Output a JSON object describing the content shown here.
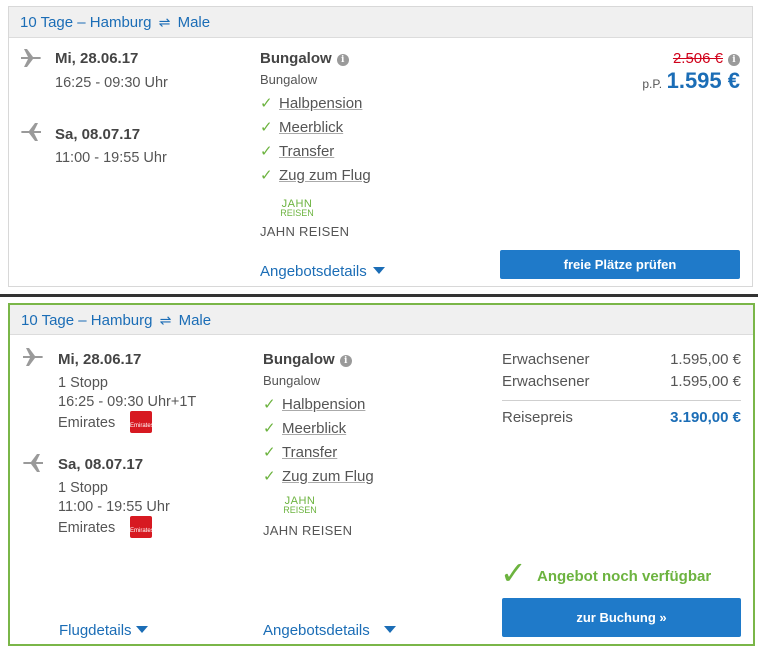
{
  "offer1": {
    "header": {
      "duration": "10 Tage",
      "from": "Hamburg",
      "swap_icon": "⇌",
      "to": "Male"
    },
    "outbound": {
      "date": "Mi, 28.06.17",
      "time": "16:25 - 09:30 Uhr"
    },
    "return": {
      "date": "Sa, 08.07.17",
      "time": "11:00 - 19:55 Uhr"
    },
    "room": {
      "title": "Bungalow",
      "subtitle": "Bungalow"
    },
    "features": [
      "Halbpension",
      "Meerblick",
      "Transfer",
      "Zug zum Flug"
    ],
    "operator": {
      "logo_top": "JAHN",
      "logo_bottom": "REISEN",
      "name": "JAHN REISEN"
    },
    "price": {
      "old": "2.506 €",
      "per_person": "p.P.",
      "current": "1.595 €"
    },
    "details_link": "Angebotsdetails",
    "button": "freie Plätze prüfen"
  },
  "offer2": {
    "header": {
      "duration": "10 Tage",
      "from": "Hamburg",
      "swap_icon": "⇌",
      "to": "Male"
    },
    "outbound": {
      "date": "Mi, 28.06.17",
      "stops": "1 Stopp",
      "time": "16:25 - 09:30 Uhr+1T",
      "airline": "Emirates"
    },
    "return": {
      "date": "Sa, 08.07.17",
      "stops": "1 Stopp",
      "time": "11:00 - 19:55 Uhr",
      "airline": "Emirates"
    },
    "room": {
      "title": "Bungalow",
      "subtitle": "Bungalow"
    },
    "features": [
      "Halbpension",
      "Meerblick",
      "Transfer",
      "Zug zum Flug"
    ],
    "operator": {
      "logo_top": "JAHN",
      "logo_bottom": "REISEN",
      "name": "JAHN REISEN"
    },
    "prices": [
      {
        "label": "Erwachsener",
        "value": "1.595,00 €"
      },
      {
        "label": "Erwachsener",
        "value": "1.595,00 €"
      }
    ],
    "total": {
      "label": "Reisepreis",
      "value": "3.190,00 €"
    },
    "availability": "Angebot noch verfügbar",
    "flight_link": "Flugdetails",
    "details_link": "Angebotsdetails",
    "button": "zur Buchung »"
  },
  "colors": {
    "accent_blue": "#1b6db6",
    "button_blue": "#1f7ac9",
    "green": "#6cb33f",
    "red": "#d0021b"
  }
}
